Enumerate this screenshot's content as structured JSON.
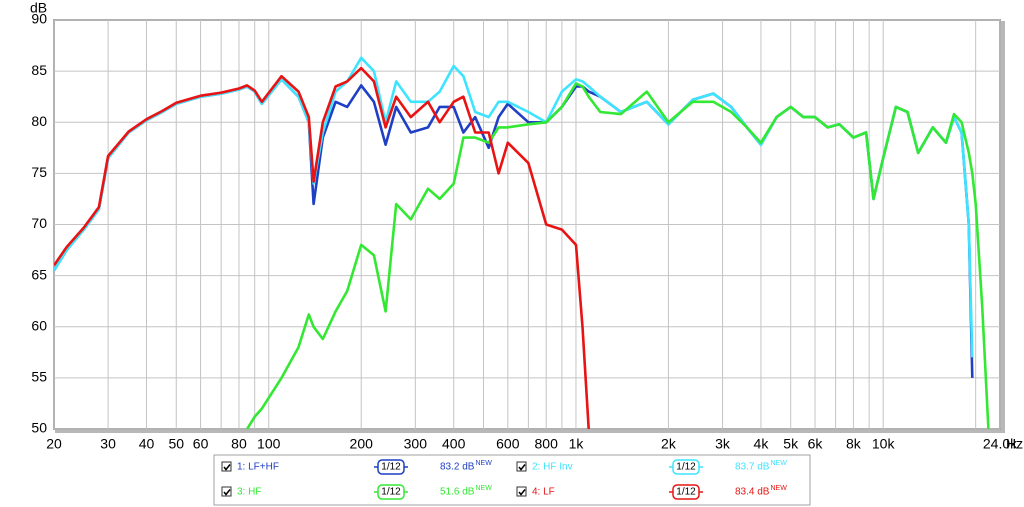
{
  "chart_data": {
    "type": "line",
    "y_label": "dB",
    "x_label": "Hz",
    "log_x": true,
    "grid": true,
    "xlim": [
      20,
      24000
    ],
    "ylim": [
      50,
      90
    ],
    "yticks": [
      50,
      55,
      60,
      65,
      70,
      75,
      80,
      85,
      90
    ],
    "xticks": [
      20,
      30,
      40,
      50,
      60,
      80,
      100,
      200,
      300,
      400,
      600,
      800,
      {
        "value": 1000,
        "label": "1k"
      },
      {
        "value": 2000,
        "label": "2k"
      },
      {
        "value": 3000,
        "label": "3k"
      },
      {
        "value": 4000,
        "label": "4k"
      },
      {
        "value": 5000,
        "label": "5k"
      },
      {
        "value": 6000,
        "label": "6k"
      },
      {
        "value": 8000,
        "label": "8k"
      },
      {
        "value": 10000,
        "label": "10k"
      },
      {
        "value": 24000,
        "label": "24.0k"
      }
    ],
    "x_minor_grid": [
      70,
      90,
      500,
      700,
      900,
      7000,
      9000,
      20000
    ],
    "x": [
      20,
      22,
      25,
      28,
      30,
      35,
      40,
      45,
      50,
      60,
      70,
      80,
      85,
      90,
      95,
      110,
      125,
      135,
      140,
      150,
      165,
      180,
      200,
      220,
      240,
      260,
      290,
      330,
      360,
      400,
      430,
      470,
      520,
      560,
      600,
      700,
      800,
      900,
      1000,
      1050,
      1100,
      1200,
      1400,
      1700,
      2000,
      2400,
      2800,
      3200,
      3600,
      4000,
      4500,
      5000,
      5500,
      6000,
      6600,
      7200,
      8000,
      8800,
      9300,
      10000,
      11000,
      12000,
      13000,
      14500,
      16000,
      17000,
      18000,
      19000,
      19500,
      20000,
      21000,
      22000
    ],
    "series": [
      {
        "name": "1: LF+HF",
        "color": "#1f3fc4",
        "smoothing": "1/12",
        "level": "83.2 dB",
        "level_tag": "NEW",
        "values": [
          65.5,
          67.5,
          69.5,
          71.5,
          76.5,
          79,
          80.2,
          81,
          81.8,
          82.5,
          82.8,
          83.2,
          83.5,
          83,
          81.8,
          84.2,
          82.5,
          80,
          72,
          78.5,
          82,
          81.5,
          83.6,
          82,
          77.8,
          81.5,
          79,
          79.5,
          81.5,
          81.5,
          79,
          80.5,
          77.5,
          80.5,
          81.8,
          80,
          80,
          81.5,
          83.5,
          83.5,
          83,
          82.5,
          81,
          82,
          79.8,
          82.2,
          82.8,
          81.5,
          79.5,
          77.8,
          80.5,
          81.5,
          80.5,
          80.5,
          79.5,
          79.8,
          78.5,
          79,
          72.5,
          76.5,
          81.5,
          81,
          77,
          79.5,
          78,
          80.5,
          79,
          70,
          55,
          null,
          null,
          null
        ]
      },
      {
        "name": "2: HF Inv",
        "color": "#3ee4ff",
        "smoothing": "1/12",
        "level": "83.7 dB",
        "level_tag": "NEW",
        "values": [
          65.5,
          67.5,
          69.5,
          71.5,
          76.5,
          79,
          80.2,
          81,
          81.8,
          82.5,
          82.8,
          83.2,
          83.5,
          83,
          81.8,
          84.2,
          82.5,
          80,
          74,
          79,
          83,
          84,
          86.3,
          85,
          80,
          84,
          82,
          82,
          83,
          85.5,
          84.5,
          81,
          80.5,
          82,
          82,
          81,
          80,
          83,
          84.2,
          84,
          83.5,
          82.5,
          81,
          82,
          79.8,
          82.2,
          82.8,
          81.5,
          79.5,
          77.8,
          80.5,
          81.5,
          80.5,
          80.5,
          79.5,
          79.8,
          78.5,
          79,
          72.5,
          76.5,
          81.5,
          81,
          77,
          79.5,
          78,
          80.5,
          79,
          70,
          57,
          null,
          null,
          null
        ]
      },
      {
        "name": "3: HF",
        "color": "#33e833",
        "smoothing": "1/12",
        "level": "51.6 dB",
        "level_tag": "NEW",
        "values": [
          null,
          null,
          null,
          null,
          null,
          null,
          null,
          null,
          null,
          null,
          null,
          null,
          50,
          51.2,
          52,
          55,
          58,
          61.2,
          60,
          58.8,
          61.5,
          63.5,
          68,
          67,
          61.5,
          72,
          70.5,
          73.5,
          72.5,
          74,
          78.5,
          78.5,
          78,
          79.5,
          79.5,
          79.8,
          80,
          81.5,
          83.8,
          83.5,
          82.5,
          81,
          80.8,
          83,
          80,
          82,
          82,
          81,
          79.5,
          78,
          80.5,
          81.5,
          80.5,
          80.5,
          79.5,
          79.8,
          78.5,
          79,
          72.5,
          76.5,
          81.5,
          81,
          77,
          79.5,
          78,
          80.8,
          80,
          77,
          75,
          72,
          62,
          50
        ]
      },
      {
        "name": "4: LF",
        "color": "#e81414",
        "smoothing": "1/12",
        "level": "83.4 dB",
        "level_tag": "NEW",
        "values": [
          66,
          67.8,
          69.7,
          71.7,
          76.7,
          79.1,
          80.3,
          81.1,
          81.9,
          82.6,
          82.9,
          83.3,
          83.6,
          83.1,
          82,
          84.5,
          83,
          80.5,
          74.2,
          80,
          83.5,
          84,
          85.3,
          84,
          79.5,
          82.5,
          80.5,
          82,
          80,
          82,
          82.5,
          79,
          79,
          75,
          78,
          76,
          70,
          69.5,
          68,
          60,
          50,
          null,
          null,
          null,
          null,
          null,
          null,
          null,
          null,
          null,
          null,
          null,
          null,
          null,
          null,
          null,
          null,
          null,
          null,
          null,
          null,
          null,
          null,
          null,
          null,
          null,
          null,
          null,
          null,
          null,
          null,
          null
        ]
      }
    ]
  }
}
